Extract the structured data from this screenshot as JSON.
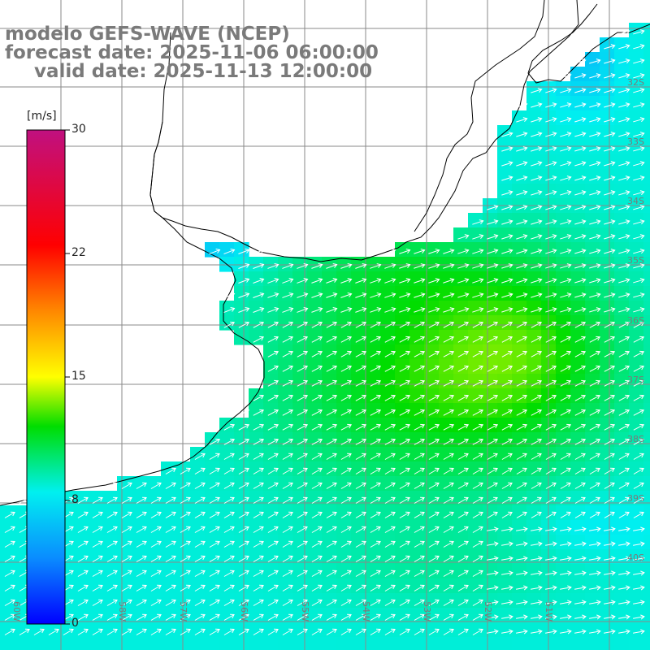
{
  "header": {
    "line1": "modelo GEFS-WAVE (NCEP)",
    "line2": "forecast date: 2025-11-06 06:00:00",
    "line3": "valid date: 2025-11-13 12:00:00"
  },
  "colorbar": {
    "unit": "[m/s]",
    "ticks": [
      "30",
      "22",
      "15",
      "8",
      "0"
    ],
    "stops": [
      {
        "value": 0,
        "color": "#0000ff"
      },
      {
        "value": 4,
        "color": "#0a8cff"
      },
      {
        "value": 8,
        "color": "#00f0f0"
      },
      {
        "value": 12,
        "color": "#00dd00"
      },
      {
        "value": 15,
        "color": "#ffff00"
      },
      {
        "value": 19,
        "color": "#ff8800"
      },
      {
        "value": 23,
        "color": "#ff0000"
      },
      {
        "value": 30,
        "color": "#c01080"
      }
    ]
  },
  "map": {
    "lat_labels": [
      "32S",
      "33S",
      "34S",
      "35S",
      "36S",
      "37S",
      "38S",
      "39S",
      "40S"
    ],
    "lon_labels": [
      "60W",
      "59W",
      "58W",
      "57W",
      "56W",
      "55W",
      "54W",
      "53W",
      "52W",
      "51W"
    ],
    "colors": {
      "land": "#ffffff",
      "coast": "#000000",
      "grid": "#8a8a8a",
      "arrow": "#ffffff",
      "label": "#7a7a7a"
    }
  }
}
